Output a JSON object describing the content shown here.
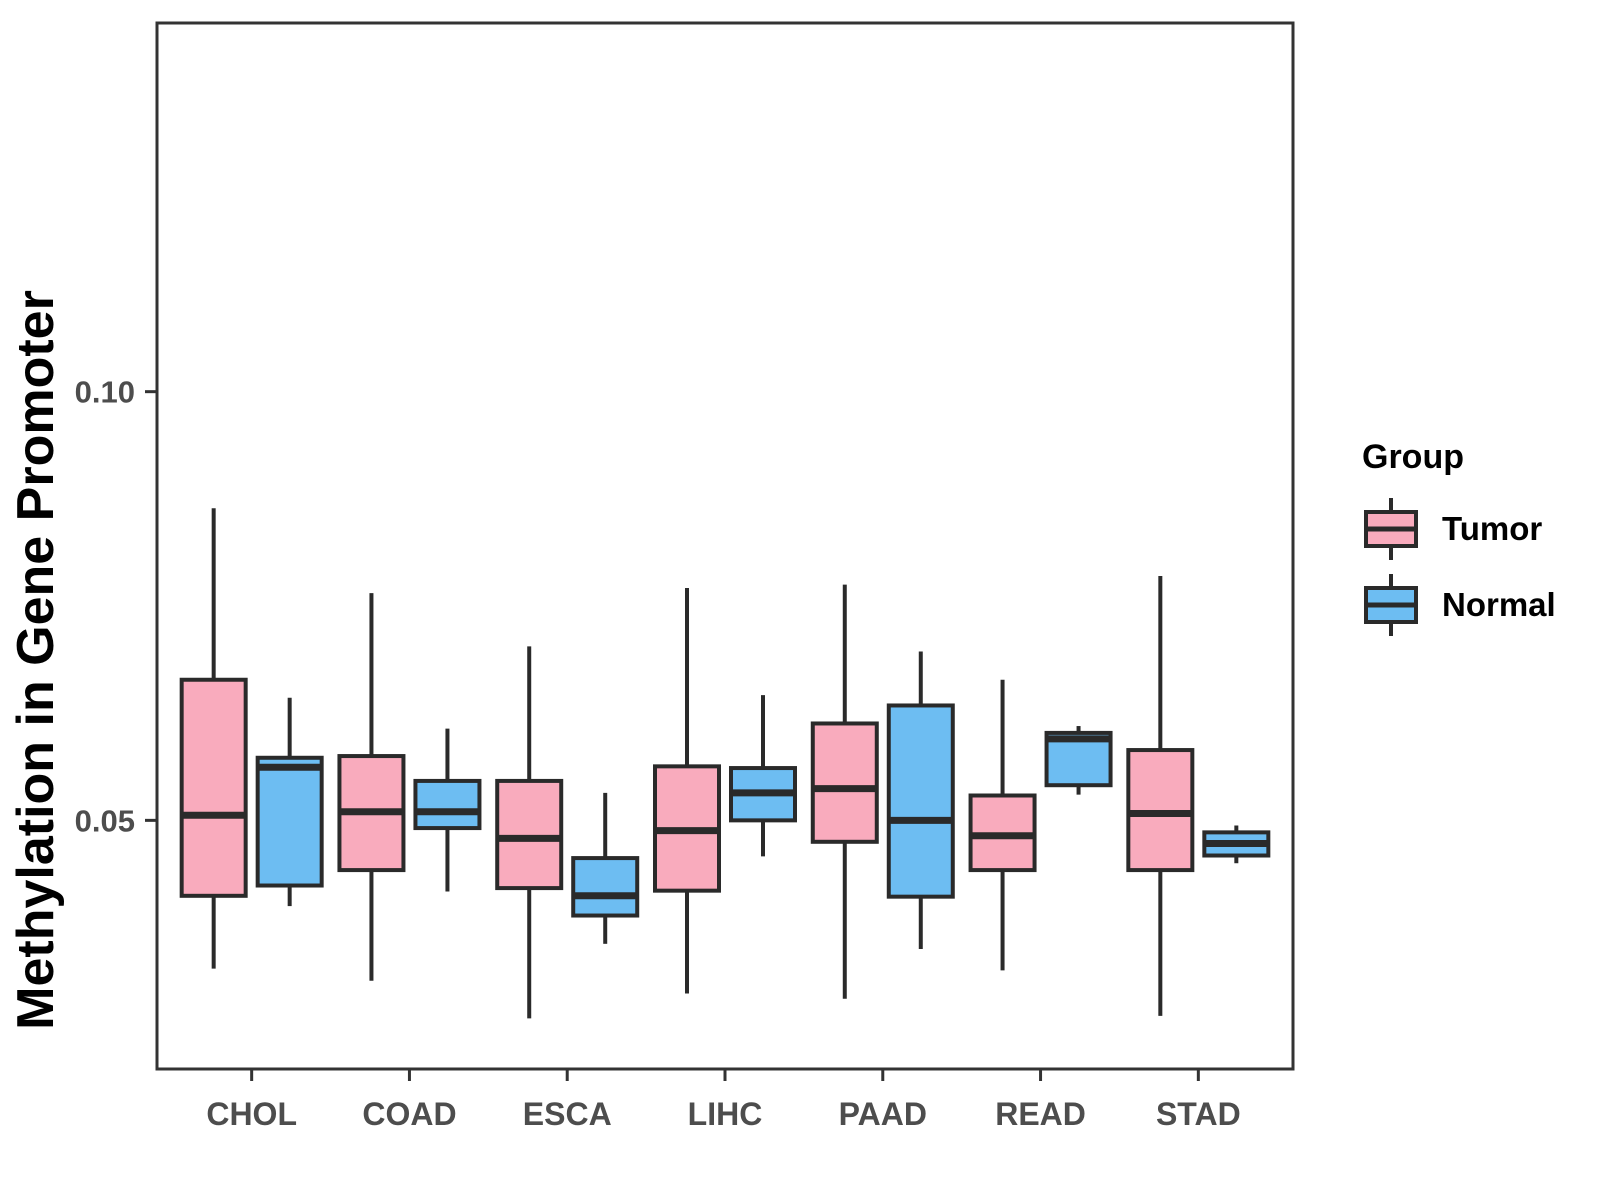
{
  "chart_data": {
    "type": "boxplot",
    "title": "",
    "xlabel": "",
    "ylabel": "Methylation in Gene Promoter",
    "legend_title": "Group",
    "legend_position": "right",
    "grid": false,
    "categories": [
      "CHOL",
      "COAD",
      "ESCA",
      "LIHC",
      "PAAD",
      "READ",
      "STAD"
    ],
    "y_ticks": [
      0.05,
      0.1
    ],
    "y_tick_labels": [
      "0.05",
      "0.10"
    ],
    "ylim": [
      0.021,
      0.143
    ],
    "series": [
      {
        "name": "Tumor",
        "color": "#F9ABBD",
        "boxes": [
          {
            "category": "CHOL",
            "min": 0.0327,
            "q1": 0.0412,
            "median": 0.0506,
            "q3": 0.0664,
            "max": 0.0864
          },
          {
            "category": "COAD",
            "min": 0.0313,
            "q1": 0.0442,
            "median": 0.051,
            "q3": 0.0575,
            "max": 0.0765
          },
          {
            "category": "ESCA",
            "min": 0.0269,
            "q1": 0.0421,
            "median": 0.0479,
            "q3": 0.0546,
            "max": 0.0703
          },
          {
            "category": "LIHC",
            "min": 0.0298,
            "q1": 0.0418,
            "median": 0.0488,
            "q3": 0.0563,
            "max": 0.0771
          },
          {
            "category": "PAAD",
            "min": 0.0292,
            "q1": 0.0475,
            "median": 0.0537,
            "q3": 0.0613,
            "max": 0.0775
          },
          {
            "category": "READ",
            "min": 0.0325,
            "q1": 0.0442,
            "median": 0.0482,
            "q3": 0.0529,
            "max": 0.0664
          },
          {
            "category": "STAD",
            "min": 0.0272,
            "q1": 0.0442,
            "median": 0.0508,
            "q3": 0.0582,
            "max": 0.0785
          }
        ]
      },
      {
        "name": "Normal",
        "color": "#6DBDF2",
        "boxes": [
          {
            "category": "CHOL",
            "min": 0.04,
            "q1": 0.0424,
            "median": 0.0562,
            "q3": 0.0573,
            "max": 0.0643
          },
          {
            "category": "COAD",
            "min": 0.0417,
            "q1": 0.0491,
            "median": 0.051,
            "q3": 0.0546,
            "max": 0.0607
          },
          {
            "category": "ESCA",
            "min": 0.0356,
            "q1": 0.0389,
            "median": 0.0412,
            "q3": 0.0456,
            "max": 0.0532
          },
          {
            "category": "LIHC",
            "min": 0.0458,
            "q1": 0.05,
            "median": 0.0532,
            "q3": 0.0561,
            "max": 0.0646
          },
          {
            "category": "PAAD",
            "min": 0.035,
            "q1": 0.0411,
            "median": 0.05,
            "q3": 0.0634,
            "max": 0.0697
          },
          {
            "category": "READ",
            "min": 0.053,
            "q1": 0.0541,
            "median": 0.0595,
            "q3": 0.0602,
            "max": 0.061
          },
          {
            "category": "STAD",
            "min": 0.045,
            "q1": 0.0459,
            "median": 0.0473,
            "q3": 0.0486,
            "max": 0.0494
          }
        ]
      }
    ],
    "colors": {
      "background": "#FFFFFF",
      "panel_border": "#333333",
      "box_stroke": "#2A2A2A",
      "axis_text": "#4D4D4D",
      "title_text": "#000000"
    }
  }
}
